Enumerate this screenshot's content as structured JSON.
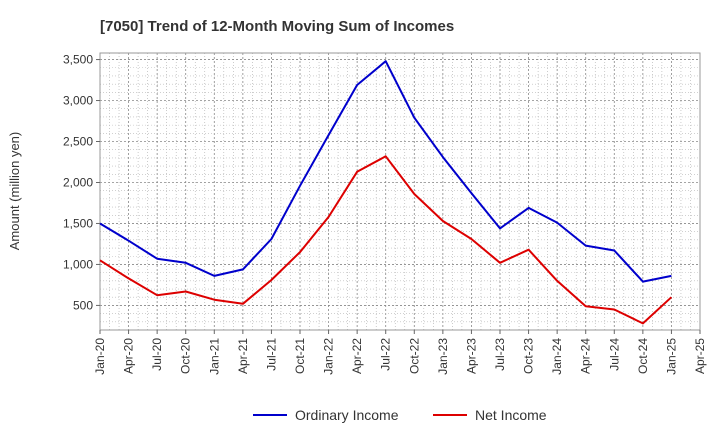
{
  "chart_data": {
    "type": "line",
    "title": "[7050]  Trend of 12-Month Moving Sum of Incomes",
    "xlabel": "",
    "ylabel": "Amount (million yen)",
    "ylim": [
      200,
      3580
    ],
    "yticks": [
      500,
      1000,
      1500,
      2000,
      2500,
      3000,
      3500
    ],
    "ytick_labels": [
      "500",
      "1,000",
      "1,500",
      "2,000",
      "2,500",
      "3,000",
      "3,500"
    ],
    "categories": [
      "Jan-20",
      "Apr-20",
      "Jul-20",
      "Oct-20",
      "Jan-21",
      "Apr-21",
      "Jul-21",
      "Oct-21",
      "Jan-22",
      "Apr-22",
      "Jul-22",
      "Oct-22",
      "Jan-23",
      "Apr-23",
      "Jul-23",
      "Oct-23",
      "Jan-24",
      "Apr-24",
      "Jul-24",
      "Oct-24",
      "Jan-25",
      "Apr-25"
    ],
    "grid": true,
    "legend_position": "bottom",
    "series": [
      {
        "name": "Ordinary Income",
        "color": "#0000cc",
        "values": [
          1500,
          1290,
          1070,
          1020,
          860,
          940,
          1310,
          1960,
          2580,
          3190,
          3480,
          2790,
          2310,
          1870,
          1440,
          1690,
          1510,
          1230,
          1170,
          790,
          860,
          null
        ]
      },
      {
        "name": "Net Income",
        "color": "#dd0000",
        "values": [
          1050,
          830,
          625,
          670,
          570,
          520,
          810,
          1150,
          1580,
          2130,
          2320,
          1860,
          1530,
          1310,
          1020,
          1180,
          800,
          490,
          450,
          280,
          600,
          null
        ]
      }
    ]
  }
}
